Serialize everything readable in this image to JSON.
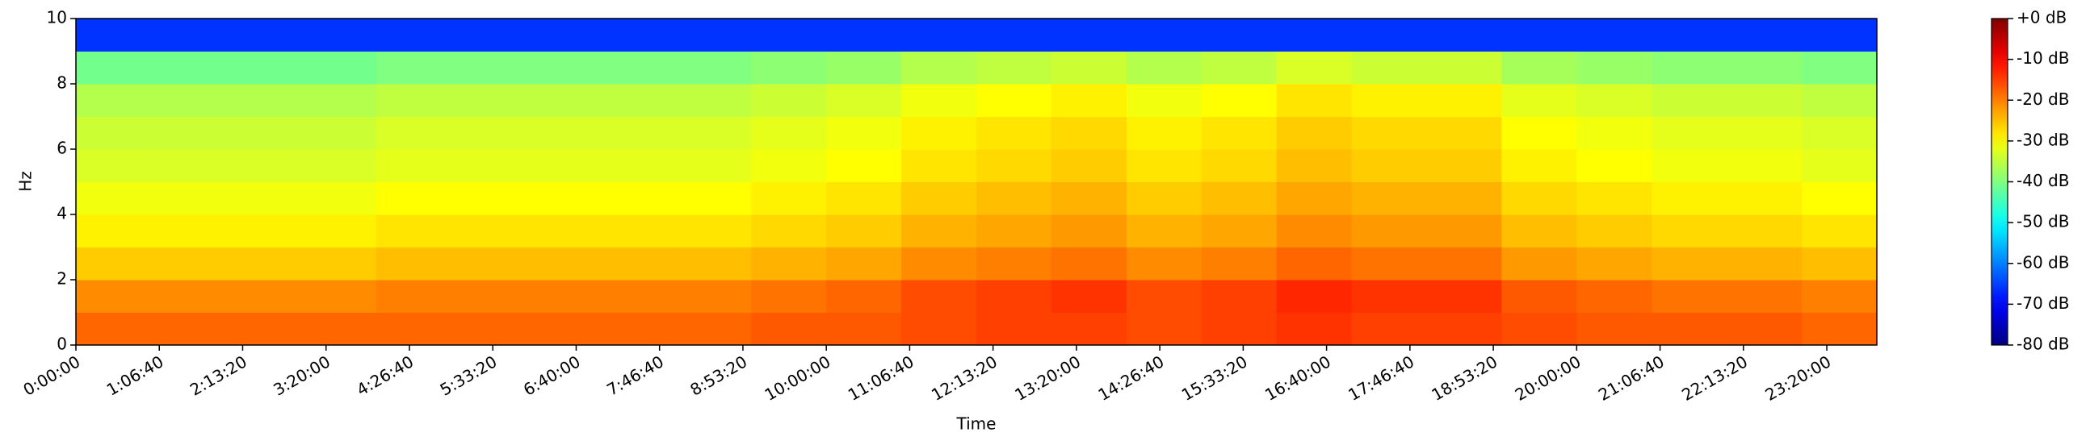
{
  "chart_data": {
    "type": "heatmap",
    "xlabel": "Time",
    "ylabel": "Hz",
    "colormap": "jet",
    "xlim": [
      0,
      86400
    ],
    "ylim": [
      0,
      10
    ],
    "clim": [
      -80,
      0
    ],
    "xticks": [
      {
        "value": 0,
        "label": "0:00:00"
      },
      {
        "value": 4000,
        "label": "1:06:40"
      },
      {
        "value": 8000,
        "label": "2:13:20"
      },
      {
        "value": 12000,
        "label": "3:20:00"
      },
      {
        "value": 16000,
        "label": "4:26:40"
      },
      {
        "value": 20000,
        "label": "5:33:20"
      },
      {
        "value": 24000,
        "label": "6:40:00"
      },
      {
        "value": 28000,
        "label": "7:46:40"
      },
      {
        "value": 32000,
        "label": "8:53:20"
      },
      {
        "value": 36000,
        "label": "10:00:00"
      },
      {
        "value": 40000,
        "label": "11:06:40"
      },
      {
        "value": 44000,
        "label": "12:13:20"
      },
      {
        "value": 48000,
        "label": "13:20:00"
      },
      {
        "value": 52000,
        "label": "14:26:40"
      },
      {
        "value": 56000,
        "label": "15:33:20"
      },
      {
        "value": 60000,
        "label": "16:40:00"
      },
      {
        "value": 64000,
        "label": "17:46:40"
      },
      {
        "value": 68000,
        "label": "18:53:20"
      },
      {
        "value": 72000,
        "label": "20:00:00"
      },
      {
        "value": 76000,
        "label": "21:06:40"
      },
      {
        "value": 80000,
        "label": "22:13:20"
      },
      {
        "value": 84000,
        "label": "23:20:00"
      }
    ],
    "yticks": [
      0,
      2,
      4,
      6,
      8,
      10
    ],
    "cticks": [
      {
        "value": 0,
        "label": "+0 dB"
      },
      {
        "value": -10,
        "label": "-10 dB"
      },
      {
        "value": -20,
        "label": "-20 dB"
      },
      {
        "value": -30,
        "label": "-30 dB"
      },
      {
        "value": -40,
        "label": "-40 dB"
      },
      {
        "value": -50,
        "label": "-50 dB"
      },
      {
        "value": -60,
        "label": "-60 dB"
      },
      {
        "value": -70,
        "label": "-70 dB"
      },
      {
        "value": -80,
        "label": "-80 dB"
      }
    ],
    "xbins": [
      0,
      3600,
      7200,
      10800,
      14400,
      18000,
      21600,
      25200,
      28800,
      32400,
      36000,
      39600,
      43200,
      46800,
      50400,
      54000,
      57600,
      61200,
      64800,
      68400,
      72000,
      75600,
      79200,
      82800,
      86400
    ],
    "ybins": [
      0,
      1,
      2,
      3,
      4,
      5,
      6,
      7,
      8,
      9,
      10
    ],
    "values": [
      [
        -18,
        -18,
        -18,
        -18,
        -18,
        -18,
        -18,
        -18,
        -18,
        -17,
        -17,
        -16,
        -15,
        -15,
        -16,
        -15,
        -14,
        -15,
        -15,
        -16,
        -17,
        -17,
        -17,
        -18
      ],
      [
        -21,
        -21,
        -21,
        -21,
        -20,
        -20,
        -20,
        -20,
        -20,
        -19,
        -18,
        -16,
        -15,
        -14,
        -16,
        -15,
        -13,
        -14,
        -14,
        -17,
        -18,
        -19,
        -19,
        -20
      ],
      [
        -26,
        -26,
        -26,
        -26,
        -25,
        -25,
        -25,
        -25,
        -25,
        -24,
        -23,
        -21,
        -20,
        -19,
        -21,
        -20,
        -18,
        -19,
        -19,
        -22,
        -23,
        -24,
        -24,
        -25
      ],
      [
        -29,
        -29,
        -29,
        -29,
        -28,
        -28,
        -28,
        -28,
        -28,
        -27,
        -26,
        -24,
        -23,
        -22,
        -24,
        -23,
        -21,
        -22,
        -22,
        -25,
        -26,
        -27,
        -27,
        -28
      ],
      [
        -31,
        -31,
        -31,
        -31,
        -30,
        -30,
        -30,
        -30,
        -30,
        -29,
        -28,
        -26,
        -25,
        -24,
        -26,
        -25,
        -23,
        -24,
        -24,
        -27,
        -28,
        -29,
        -29,
        -30
      ],
      [
        -33,
        -33,
        -33,
        -33,
        -32,
        -32,
        -32,
        -32,
        -32,
        -31,
        -30,
        -28,
        -27,
        -26,
        -28,
        -27,
        -25,
        -26,
        -26,
        -29,
        -30,
        -31,
        -31,
        -32
      ],
      [
        -34,
        -34,
        -34,
        -34,
        -33,
        -33,
        -33,
        -33,
        -33,
        -32,
        -31,
        -29,
        -28,
        -27,
        -29,
        -28,
        -26,
        -27,
        -27,
        -30,
        -31,
        -32,
        -32,
        -33
      ],
      [
        -36,
        -36,
        -36,
        -36,
        -35,
        -35,
        -35,
        -35,
        -35,
        -34,
        -33,
        -31,
        -30,
        -29,
        -31,
        -30,
        -28,
        -29,
        -29,
        -32,
        -33,
        -34,
        -34,
        -35
      ],
      [
        -41,
        -41,
        -41,
        -41,
        -40,
        -40,
        -40,
        -40,
        -40,
        -39,
        -38,
        -36,
        -35,
        -34,
        -36,
        -35,
        -33,
        -34,
        -34,
        -37,
        -38,
        -39,
        -39,
        -40
      ],
      [
        -66,
        -66,
        -66,
        -66,
        -66,
        -66,
        -66,
        -66,
        -66,
        -66,
        -66,
        -66,
        -66,
        -66,
        -66,
        -66,
        -66,
        -66,
        -66,
        -66,
        -66,
        -66,
        -66,
        -66
      ]
    ]
  }
}
